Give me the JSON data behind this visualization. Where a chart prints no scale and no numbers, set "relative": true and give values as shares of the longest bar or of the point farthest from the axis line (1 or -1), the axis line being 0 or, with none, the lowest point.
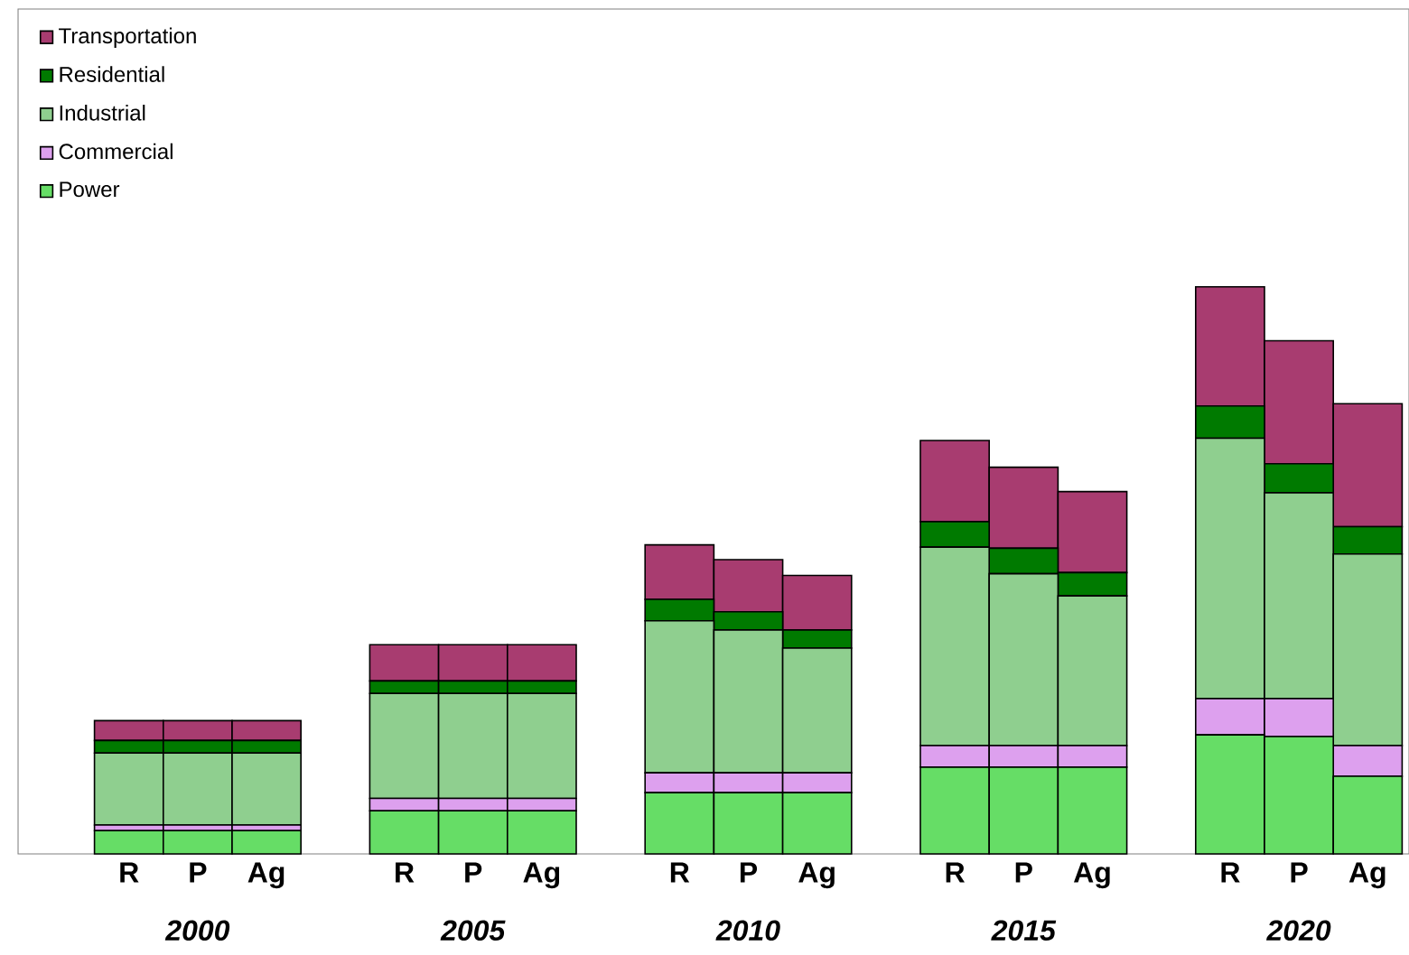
{
  "chart_data": {
    "type": "bar",
    "stacked": true,
    "relative": true,
    "legend": "top left",
    "tick_labels": "x",
    "categories": [
      "R",
      "P",
      "Ag",
      "R",
      "P",
      "Ag",
      "R",
      "P",
      "Ag",
      "R",
      "P",
      "Ag",
      "R",
      "P",
      "Ag"
    ],
    "annotations": [
      "2000",
      "2005",
      "2010",
      "2015",
      "2020"
    ],
    "series": [
      {
        "name": "Power",
        "color": "#66dd66",
        "values": [
          0.041,
          0.041,
          0.041,
          0.076,
          0.076,
          0.076,
          0.108,
          0.108,
          0.108,
          0.153,
          0.153,
          0.153,
          0.21,
          0.207,
          0.137
        ]
      },
      {
        "name": "Commercial",
        "color": "#dda0ee",
        "values": [
          0.01,
          0.01,
          0.01,
          0.022,
          0.022,
          0.022,
          0.035,
          0.035,
          0.035,
          0.038,
          0.038,
          0.038,
          0.064,
          0.067,
          0.054
        ]
      },
      {
        "name": "Industrial",
        "color": "#8fcf8f",
        "values": [
          0.127,
          0.127,
          0.127,
          0.185,
          0.185,
          0.185,
          0.268,
          0.252,
          0.22,
          0.35,
          0.303,
          0.264,
          0.459,
          0.363,
          0.338
        ]
      },
      {
        "name": "Residential",
        "color": "#007a00",
        "values": [
          0.022,
          0.022,
          0.022,
          0.022,
          0.022,
          0.022,
          0.038,
          0.032,
          0.032,
          0.045,
          0.045,
          0.041,
          0.057,
          0.051,
          0.048
        ]
      },
      {
        "name": "Transportation",
        "color": "#a83c70",
        "values": [
          0.035,
          0.035,
          0.035,
          0.064,
          0.064,
          0.064,
          0.096,
          0.092,
          0.096,
          0.143,
          0.143,
          0.143,
          0.21,
          0.217,
          0.217
        ]
      }
    ]
  }
}
